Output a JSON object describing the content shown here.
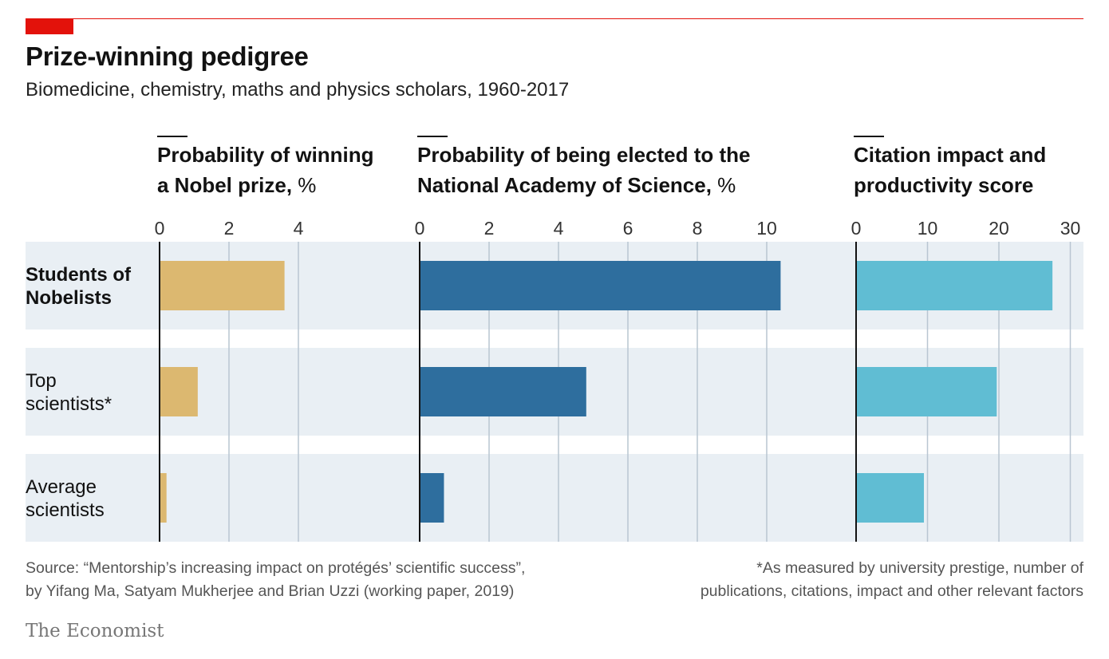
{
  "header": {
    "title": "Prize-winning pedigree",
    "subtitle": "Biomedicine, chemistry, maths and physics scholars, 1960-2017"
  },
  "footer": {
    "source_line1": "Source: “Mentorship’s increasing impact on protégés’ scientific success”,",
    "source_line2": "by Yifang Ma, Satyam Mukherjee and Brian Uzzi (working paper, 2019)",
    "note_line1": "*As measured by university prestige, number of",
    "note_line2": "publications, citations, impact and other relevant factors",
    "brand": "The Economist"
  },
  "chart_data": {
    "type": "bar",
    "orientation": "horizontal",
    "categories": [
      {
        "line1": "Students of",
        "line2": "Nobelists",
        "bold": true
      },
      {
        "line1": "Top",
        "line2": "scientists*",
        "bold": false
      },
      {
        "line1": "Average",
        "line2": "scientists",
        "bold": false
      }
    ],
    "panels": [
      {
        "title_line1": "Probability of winning",
        "title_line2_bold": "a Nobel prize,",
        "title_unit": " %",
        "xlim": [
          0,
          4
        ],
        "ticks": [
          0,
          2,
          4
        ],
        "values": [
          3.6,
          1.1,
          0.2
        ],
        "color": "#dcb870"
      },
      {
        "title_line1": "Probability of being elected to the",
        "title_line2_bold": "National Academy of Science,",
        "title_unit": " %",
        "xlim": [
          0,
          10
        ],
        "ticks": [
          0,
          2,
          4,
          6,
          8,
          10
        ],
        "values": [
          10.4,
          4.8,
          0.7
        ],
        "color": "#2e6e9e"
      },
      {
        "title_line1": "Citation impact and",
        "title_line2_bold": "productivity score",
        "title_unit": "",
        "xlim": [
          0,
          30
        ],
        "ticks": [
          0,
          10,
          20,
          30
        ],
        "values": [
          27.5,
          19.7,
          9.5
        ],
        "color": "#60bdd3"
      }
    ],
    "grid": true,
    "row_background": "#e9eff4",
    "gridline_color": "#b9c6d1"
  }
}
